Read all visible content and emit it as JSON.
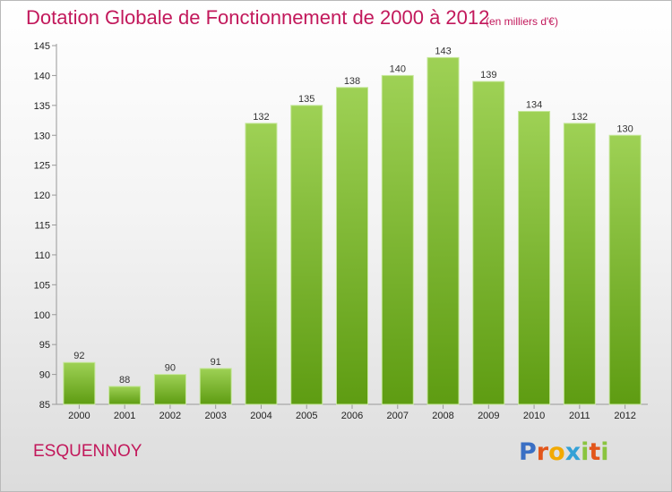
{
  "header": {
    "title": "Dotation Globale de Fonctionnement de 2000 à 2012",
    "subtitle": "(en milliers d'€)"
  },
  "footer": {
    "commune": "ESQUENNOY",
    "logo": [
      "P",
      "r",
      "o",
      "x",
      "i",
      "t",
      "i"
    ],
    "logo_colors": [
      "#3a6fc4",
      "#e2561b",
      "#f2a900",
      "#33a1d6",
      "#8ac43f",
      "#e2561b",
      "#8ac43f"
    ]
  },
  "colors": {
    "accent": "#c2185b",
    "bar_top": "#9ed155",
    "bar_bottom": "#5e9c12",
    "bar_edge": "#c5e79a"
  },
  "chart_data": {
    "type": "bar",
    "title": "Dotation Globale de Fonctionnement de 2000 à 2012",
    "subtitle": "(en milliers d'€)",
    "categories": [
      "2000",
      "2001",
      "2002",
      "2003",
      "2004",
      "2005",
      "2006",
      "2007",
      "2008",
      "2009",
      "2010",
      "2011",
      "2012"
    ],
    "values": [
      92,
      88,
      90,
      91,
      132,
      135,
      138,
      140,
      143,
      139,
      134,
      132,
      130
    ],
    "xlabel": "",
    "ylabel": "",
    "ylim": [
      85,
      145
    ],
    "yticks": [
      85,
      90,
      95,
      100,
      105,
      110,
      115,
      120,
      125,
      130,
      135,
      140,
      145
    ],
    "grid": false,
    "legend": "none"
  }
}
